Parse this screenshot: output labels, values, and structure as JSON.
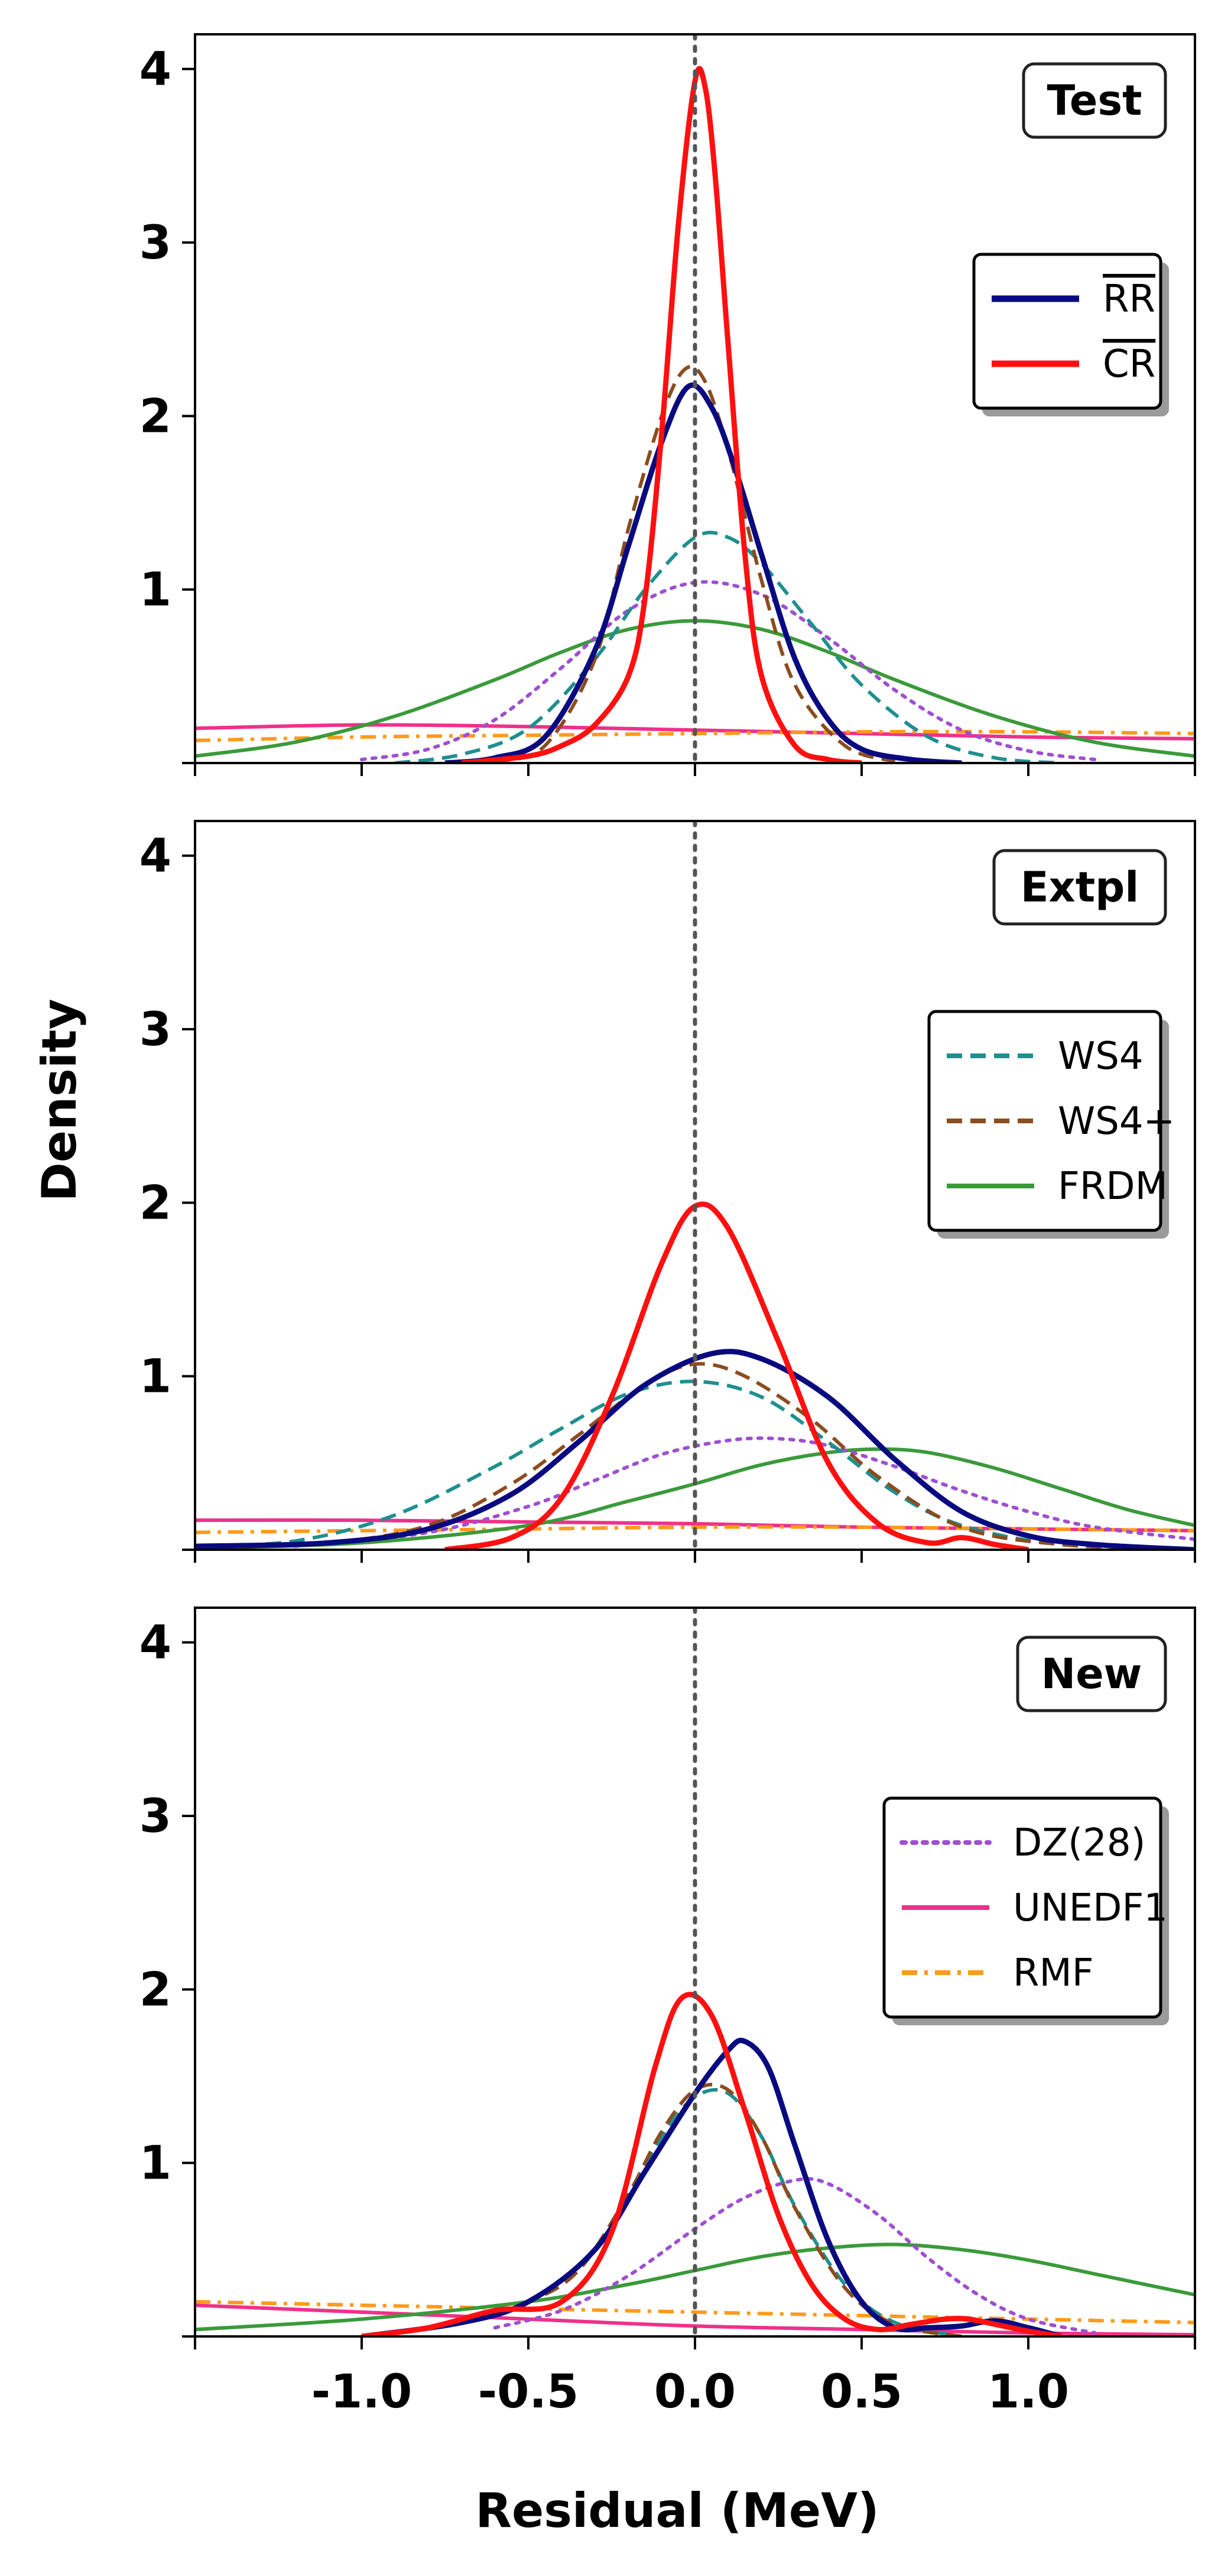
{
  "chart_data": {
    "type": "line",
    "xlabel": "Residual (MeV)",
    "ylabel": "Density",
    "xlim": [
      -1.5,
      1.5
    ],
    "ylim": [
      0,
      4.2
    ],
    "x_ticks": [
      -1.0,
      -0.5,
      0.0,
      0.5,
      1.0
    ],
    "x_tick_labels": [
      "-1.0",
      "-0.5",
      "0.0",
      "0.5",
      "1.0"
    ],
    "y_ticks": [
      1,
      2,
      3,
      4
    ],
    "y_tick_labels": [
      "1",
      "2",
      "3",
      "4"
    ],
    "reference_line_x": 0.0,
    "styles": {
      "RR": {
        "color": "#0a0a80",
        "dash": "solid",
        "width": 9
      },
      "CR": {
        "color": "#ff1010",
        "dash": "solid",
        "width": 9
      },
      "WS4": {
        "color": "#1f8f8f",
        "dash": "dashed",
        "width": 6
      },
      "WS4+": {
        "color": "#8b4c1e",
        "dash": "dashed",
        "width": 6
      },
      "FRDM": {
        "color": "#3a9a3a",
        "dash": "solid",
        "width": 6
      },
      "DZ(28)": {
        "color": "#9e4fd0",
        "dash": "dotted",
        "width": 6
      },
      "UNEDF1": {
        "color": "#f0308a",
        "dash": "solid",
        "width": 6
      },
      "RMF": {
        "color": "#ff9a1a",
        "dash": "dashdot",
        "width": 6
      }
    },
    "panels": [
      {
        "tag": "Test",
        "legend": [
          {
            "key": "RR",
            "label": "RR",
            "overline": true
          },
          {
            "key": "CR",
            "label": "CR",
            "overline": true
          }
        ],
        "series": [
          {
            "name": "UNEDF1",
            "x": [
              -1.5,
              -1.0,
              -0.5,
              0.0,
              0.5,
              1.0,
              1.5
            ],
            "y": [
              0.2,
              0.22,
              0.21,
              0.19,
              0.17,
              0.15,
              0.14
            ]
          },
          {
            "name": "RMF",
            "x": [
              -1.5,
              -1.0,
              -0.5,
              0.0,
              0.5,
              1.0,
              1.5
            ],
            "y": [
              0.13,
              0.15,
              0.16,
              0.17,
              0.18,
              0.18,
              0.17
            ]
          },
          {
            "name": "FRDM",
            "x": [
              -1.5,
              -1.2,
              -0.9,
              -0.6,
              -0.4,
              -0.2,
              0.0,
              0.2,
              0.4,
              0.6,
              0.9,
              1.2,
              1.5
            ],
            "y": [
              0.04,
              0.12,
              0.27,
              0.48,
              0.64,
              0.77,
              0.82,
              0.77,
              0.64,
              0.48,
              0.27,
              0.12,
              0.04
            ]
          },
          {
            "name": "DZ(28)",
            "x": [
              -1.0,
              -0.8,
              -0.6,
              -0.4,
              -0.2,
              0.0,
              0.2,
              0.4,
              0.6,
              0.8,
              1.0,
              1.2
            ],
            "y": [
              0.02,
              0.08,
              0.25,
              0.55,
              0.88,
              1.04,
              0.97,
              0.72,
              0.42,
              0.19,
              0.07,
              0.02
            ]
          },
          {
            "name": "WS4",
            "x": [
              -0.9,
              -0.7,
              -0.5,
              -0.3,
              -0.15,
              0.0,
              0.1,
              0.2,
              0.35,
              0.5,
              0.7,
              0.9,
              1.1
            ],
            "y": [
              0.0,
              0.05,
              0.2,
              0.6,
              1.0,
              1.3,
              1.3,
              1.15,
              0.8,
              0.45,
              0.15,
              0.03,
              0.0
            ]
          },
          {
            "name": "WS4+",
            "x": [
              -0.6,
              -0.45,
              -0.3,
              -0.2,
              -0.1,
              -0.03,
              0.03,
              0.1,
              0.2,
              0.3,
              0.45,
              0.6
            ],
            "y": [
              0.01,
              0.1,
              0.6,
              1.35,
              2.0,
              2.27,
              2.2,
              1.8,
              1.05,
              0.45,
              0.1,
              0.01
            ]
          },
          {
            "name": "RR",
            "x": [
              -0.75,
              -0.6,
              -0.45,
              -0.3,
              -0.2,
              -0.1,
              -0.02,
              0.05,
              0.12,
              0.2,
              0.3,
              0.4,
              0.5,
              0.65,
              0.8
            ],
            "y": [
              0.0,
              0.03,
              0.15,
              0.65,
              1.25,
              1.85,
              2.17,
              2.05,
              1.7,
              1.2,
              0.6,
              0.25,
              0.08,
              0.02,
              0.0
            ]
          },
          {
            "name": "CR",
            "x": [
              -0.7,
              -0.5,
              -0.4,
              -0.3,
              -0.2,
              -0.15,
              -0.1,
              -0.05,
              0.0,
              0.03,
              0.06,
              0.1,
              0.15,
              0.2,
              0.3,
              0.4,
              0.5
            ],
            "y": [
              0.0,
              0.04,
              0.1,
              0.22,
              0.5,
              0.95,
              1.9,
              3.1,
              3.93,
              3.9,
              3.4,
              2.4,
              1.2,
              0.5,
              0.1,
              0.02,
              0.0
            ]
          }
        ]
      },
      {
        "tag": "Extpl",
        "legend": [
          {
            "key": "WS4",
            "label": "WS4",
            "overline": false
          },
          {
            "key": "WS4+",
            "label": "WS4+",
            "overline": false
          },
          {
            "key": "FRDM",
            "label": "FRDM",
            "overline": false
          }
        ],
        "series": [
          {
            "name": "UNEDF1",
            "x": [
              -1.5,
              -1.0,
              -0.5,
              0.0,
              0.5,
              1.0,
              1.5
            ],
            "y": [
              0.17,
              0.17,
              0.16,
              0.15,
              0.13,
              0.12,
              0.11
            ]
          },
          {
            "name": "RMF",
            "x": [
              -1.5,
              -1.0,
              -0.5,
              0.0,
              0.5,
              1.0,
              1.5
            ],
            "y": [
              0.1,
              0.11,
              0.12,
              0.13,
              0.13,
              0.12,
              0.11
            ]
          },
          {
            "name": "FRDM",
            "x": [
              -1.5,
              -1.0,
              -0.5,
              -0.2,
              0.0,
              0.2,
              0.4,
              0.55,
              0.7,
              0.9,
              1.1,
              1.3,
              1.5
            ],
            "y": [
              0.01,
              0.04,
              0.14,
              0.28,
              0.38,
              0.49,
              0.56,
              0.58,
              0.56,
              0.47,
              0.35,
              0.23,
              0.14
            ]
          },
          {
            "name": "DZ(28)",
            "x": [
              -1.2,
              -0.8,
              -0.5,
              -0.3,
              -0.1,
              0.1,
              0.25,
              0.4,
              0.6,
              0.8,
              1.0,
              1.2,
              1.5
            ],
            "y": [
              0.02,
              0.1,
              0.25,
              0.4,
              0.55,
              0.63,
              0.64,
              0.6,
              0.48,
              0.34,
              0.22,
              0.13,
              0.06
            ]
          },
          {
            "name": "WS4",
            "x": [
              -1.5,
              -1.2,
              -0.9,
              -0.6,
              -0.4,
              -0.2,
              0.0,
              0.2,
              0.4,
              0.6,
              0.8,
              1.1,
              1.5
            ],
            "y": [
              0.02,
              0.05,
              0.2,
              0.48,
              0.7,
              0.9,
              0.97,
              0.88,
              0.62,
              0.33,
              0.14,
              0.03,
              0.0
            ]
          },
          {
            "name": "WS4+",
            "x": [
              -1.5,
              -1.1,
              -0.8,
              -0.55,
              -0.35,
              -0.15,
              0.0,
              0.15,
              0.35,
              0.55,
              0.8,
              1.1,
              1.5
            ],
            "y": [
              0.01,
              0.04,
              0.14,
              0.38,
              0.66,
              0.95,
              1.07,
              1.0,
              0.75,
              0.42,
              0.13,
              0.03,
              0.0
            ]
          },
          {
            "name": "RR",
            "x": [
              -1.5,
              -1.1,
              -0.8,
              -0.55,
              -0.35,
              -0.15,
              0.05,
              0.2,
              0.4,
              0.6,
              0.8,
              1.0,
              1.2,
              1.5
            ],
            "y": [
              0.02,
              0.04,
              0.12,
              0.32,
              0.62,
              0.95,
              1.13,
              1.1,
              0.88,
              0.52,
              0.22,
              0.08,
              0.03,
              0.0
            ]
          },
          {
            "name": "CR",
            "x": [
              -0.75,
              -0.55,
              -0.4,
              -0.25,
              -0.1,
              0.0,
              0.1,
              0.25,
              0.4,
              0.55,
              0.7,
              0.8,
              0.9,
              1.0
            ],
            "y": [
              0.0,
              0.07,
              0.3,
              0.88,
              1.65,
              1.98,
              1.85,
              1.2,
              0.5,
              0.15,
              0.04,
              0.07,
              0.03,
              0.0
            ]
          }
        ]
      },
      {
        "tag": "New",
        "legend": [
          {
            "key": "DZ(28)",
            "label": "DZ(28)",
            "overline": false
          },
          {
            "key": "UNEDF1",
            "label": "UNEDF1",
            "overline": false
          },
          {
            "key": "RMF",
            "label": "RMF",
            "overline": false
          }
        ],
        "series": [
          {
            "name": "UNEDF1",
            "x": [
              -1.5,
              -1.0,
              -0.5,
              0.0,
              0.5,
              1.0,
              1.5
            ],
            "y": [
              0.18,
              0.14,
              0.1,
              0.06,
              0.04,
              0.02,
              0.01
            ]
          },
          {
            "name": "RMF",
            "x": [
              -1.5,
              -1.0,
              -0.5,
              0.0,
              0.5,
              1.0,
              1.5
            ],
            "y": [
              0.2,
              0.18,
              0.16,
              0.14,
              0.12,
              0.1,
              0.08
            ]
          },
          {
            "name": "FRDM",
            "x": [
              -1.5,
              -1.0,
              -0.5,
              -0.2,
              0.0,
              0.2,
              0.4,
              0.6,
              0.8,
              1.0,
              1.2,
              1.5
            ],
            "y": [
              0.04,
              0.1,
              0.2,
              0.3,
              0.38,
              0.46,
              0.51,
              0.53,
              0.5,
              0.44,
              0.36,
              0.24
            ]
          },
          {
            "name": "DZ(28)",
            "x": [
              -0.6,
              -0.4,
              -0.2,
              0.0,
              0.15,
              0.3,
              0.4,
              0.55,
              0.7,
              0.85,
              1.0,
              1.2
            ],
            "y": [
              0.05,
              0.15,
              0.35,
              0.62,
              0.8,
              0.9,
              0.88,
              0.7,
              0.45,
              0.24,
              0.1,
              0.02
            ]
          },
          {
            "name": "WS4",
            "x": [
              -1.0,
              -0.7,
              -0.5,
              -0.35,
              -0.2,
              -0.1,
              0.0,
              0.1,
              0.2,
              0.3,
              0.45,
              0.6,
              0.8
            ],
            "y": [
              0.0,
              0.08,
              0.2,
              0.38,
              0.8,
              1.15,
              1.38,
              1.4,
              1.15,
              0.75,
              0.3,
              0.08,
              0.0
            ]
          },
          {
            "name": "WS4+",
            "x": [
              -1.0,
              -0.7,
              -0.5,
              -0.35,
              -0.2,
              -0.1,
              0.0,
              0.1,
              0.2,
              0.3,
              0.45,
              0.6,
              0.8
            ],
            "y": [
              0.0,
              0.08,
              0.2,
              0.38,
              0.82,
              1.18,
              1.42,
              1.42,
              1.15,
              0.74,
              0.28,
              0.07,
              0.0
            ]
          },
          {
            "name": "RR",
            "x": [
              -1.0,
              -0.7,
              -0.5,
              -0.3,
              -0.15,
              0.0,
              0.1,
              0.15,
              0.22,
              0.3,
              0.4,
              0.5,
              0.6,
              0.7,
              0.8,
              0.9,
              1.0,
              1.1
            ],
            "y": [
              0.0,
              0.08,
              0.2,
              0.5,
              0.95,
              1.4,
              1.65,
              1.7,
              1.55,
              1.1,
              0.55,
              0.2,
              0.05,
              0.05,
              0.06,
              0.09,
              0.05,
              0.0
            ]
          },
          {
            "name": "CR",
            "x": [
              -1.0,
              -0.8,
              -0.6,
              -0.4,
              -0.25,
              -0.12,
              -0.04,
              0.05,
              0.15,
              0.25,
              0.35,
              0.45,
              0.55,
              0.65,
              0.75,
              0.82,
              0.9,
              1.0,
              1.1
            ],
            "y": [
              0.0,
              0.05,
              0.15,
              0.2,
              0.6,
              1.55,
              1.95,
              1.85,
              1.3,
              0.7,
              0.3,
              0.1,
              0.04,
              0.07,
              0.1,
              0.1,
              0.07,
              0.03,
              0.0
            ]
          }
        ]
      }
    ]
  }
}
